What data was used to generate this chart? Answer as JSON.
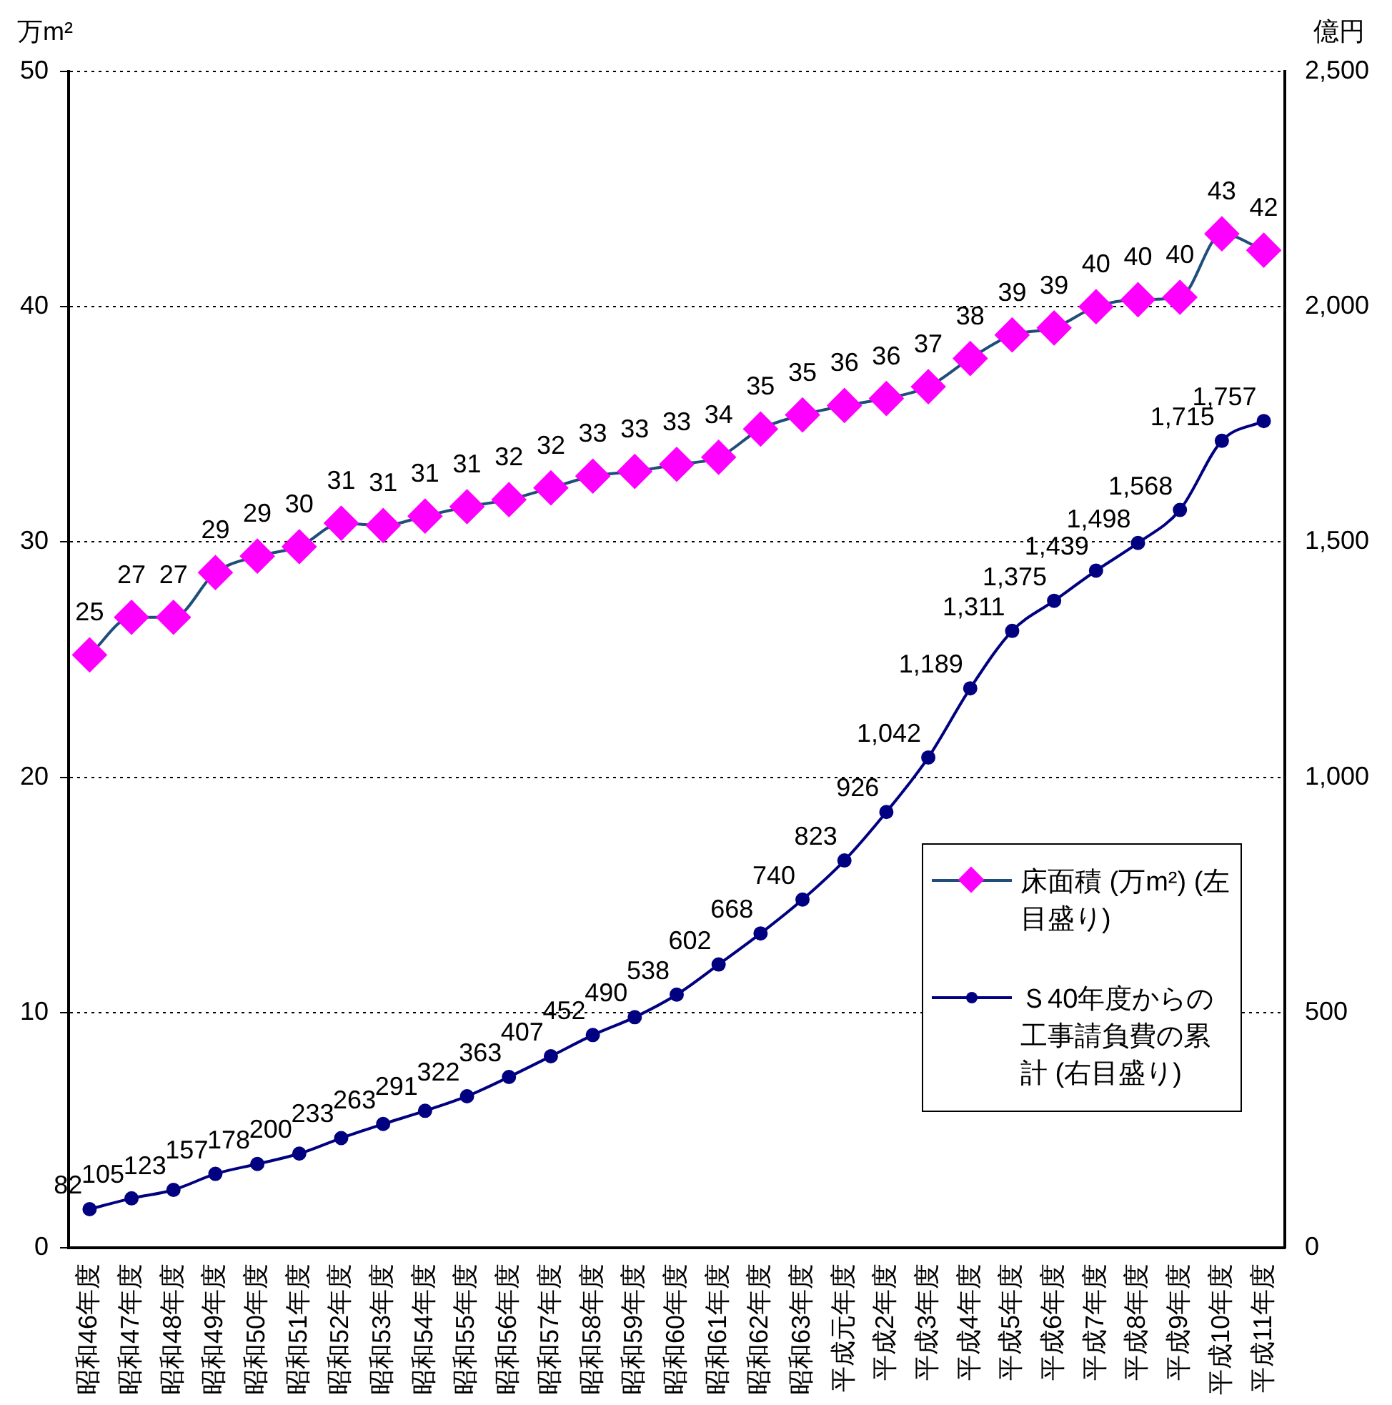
{
  "chart_data": {
    "type": "line",
    "ylabel": "万m²",
    "y2label": "億円",
    "categories": [
      "昭和46年度",
      "昭和47年度",
      "昭和48年度",
      "昭和49年度",
      "昭和50年度",
      "昭和51年度",
      "昭和52年度",
      "昭和53年度",
      "昭和54年度",
      "昭和55年度",
      "昭和56年度",
      "昭和57年度",
      "昭和58年度",
      "昭和59年度",
      "昭和60年度",
      "昭和61年度",
      "昭和62年度",
      "昭和63年度",
      "平成元年度",
      "平成2年度",
      "平成3年度",
      "平成4年度",
      "平成5年度",
      "平成6年度",
      "平成7年度",
      "平成8年度",
      "平成9年度",
      "平成10年度",
      "平成11年度"
    ],
    "series": [
      {
        "name": "床面積 (万m²) (左目盛り)",
        "color": "#ff00ff",
        "marker": "diamond",
        "values": [
          25.2,
          26.8,
          26.8,
          28.7,
          29.4,
          29.8,
          30.8,
          30.7,
          31.1,
          31.5,
          31.8,
          32.3,
          32.8,
          33.0,
          33.3,
          33.6,
          34.8,
          35.4,
          35.8,
          36.1,
          36.6,
          37.8,
          38.8,
          39.1,
          40.0,
          40.3,
          40.4,
          43.1,
          42.4
        ],
        "value_labels": [
          "25",
          "27",
          "27",
          "29",
          "29",
          "30",
          "31",
          "31",
          "31",
          "31",
          "32",
          "32",
          "33",
          "33",
          "33",
          "34",
          "35",
          "35",
          "36",
          "36",
          "37",
          "38",
          "39",
          "39",
          "40",
          "40",
          "40",
          "43",
          "42"
        ]
      },
      {
        "name": "Ｓ40年度からの工事請負費の累計 (右目盛り)",
        "color": "#000080",
        "marker": "circle",
        "axis": "y2",
        "values": [
          82,
          105,
          123,
          157,
          178,
          200,
          233,
          263,
          291,
          322,
          363,
          407,
          452,
          490,
          538,
          602,
          668,
          740,
          823,
          926,
          1042,
          1189,
          1311,
          1375,
          1439,
          1498,
          1568,
          1715,
          1757
        ],
        "value_labels": [
          "82",
          "105",
          "123",
          "157",
          "178",
          "200",
          "233",
          "263",
          "291",
          "322",
          "363",
          "407",
          "452",
          "490",
          "538",
          "602",
          "668",
          "740",
          "823",
          "926",
          "1,042",
          "1,189",
          "1,311",
          "1,375",
          "1,439",
          "1,498",
          "1,568",
          "1,715",
          "1,757"
        ]
      }
    ],
    "ylim": [
      0,
      50
    ],
    "yticks": [
      0,
      10,
      20,
      30,
      40,
      50
    ],
    "y2lim": [
      0,
      2500
    ],
    "y2ticks": [
      0,
      {
        "value": 500,
        "label": "500"
      },
      {
        "value": 1000,
        "label": "1,000"
      },
      {
        "value": 1500,
        "label": "1,500"
      },
      {
        "value": 2000,
        "label": "2,000"
      },
      {
        "value": 2500,
        "label": "2,500"
      }
    ],
    "grid": "y",
    "legend": "right"
  }
}
